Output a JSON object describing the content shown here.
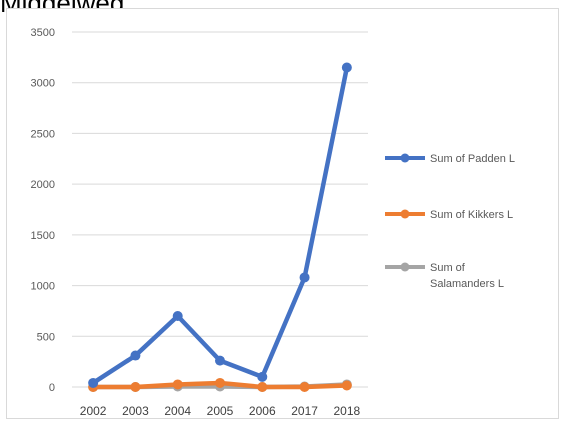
{
  "chart_data": {
    "type": "line",
    "title": "Middelweg",
    "xlabel": "",
    "ylabel": "",
    "categories": [
      "2002",
      "2003",
      "2004",
      "2005",
      "2006",
      "2017",
      "2018"
    ],
    "yticks": [
      "0",
      "500",
      "1000",
      "1500",
      "2000",
      "2500",
      "3000",
      "3500"
    ],
    "ylim": [
      0,
      3500
    ],
    "grid": true,
    "legend_position": "right",
    "series": [
      {
        "name": "Sum of Padden L",
        "legend_lines": [
          "Sum of Padden L"
        ],
        "color": "#4472c4",
        "values": [
          40,
          310,
          700,
          260,
          100,
          1080,
          3150
        ]
      },
      {
        "name": "Sum of Kikkers L",
        "legend_lines": [
          "Sum of Kikkers L"
        ],
        "color": "#ed7d31",
        "values": [
          0,
          0,
          25,
          40,
          0,
          0,
          15
        ]
      },
      {
        "name": "Sum of Salamanders L",
        "legend_lines": [
          "Sum of",
          "Salamanders L"
        ],
        "color": "#a5a5a5",
        "values": [
          0,
          0,
          5,
          5,
          0,
          5,
          25
        ]
      }
    ]
  }
}
